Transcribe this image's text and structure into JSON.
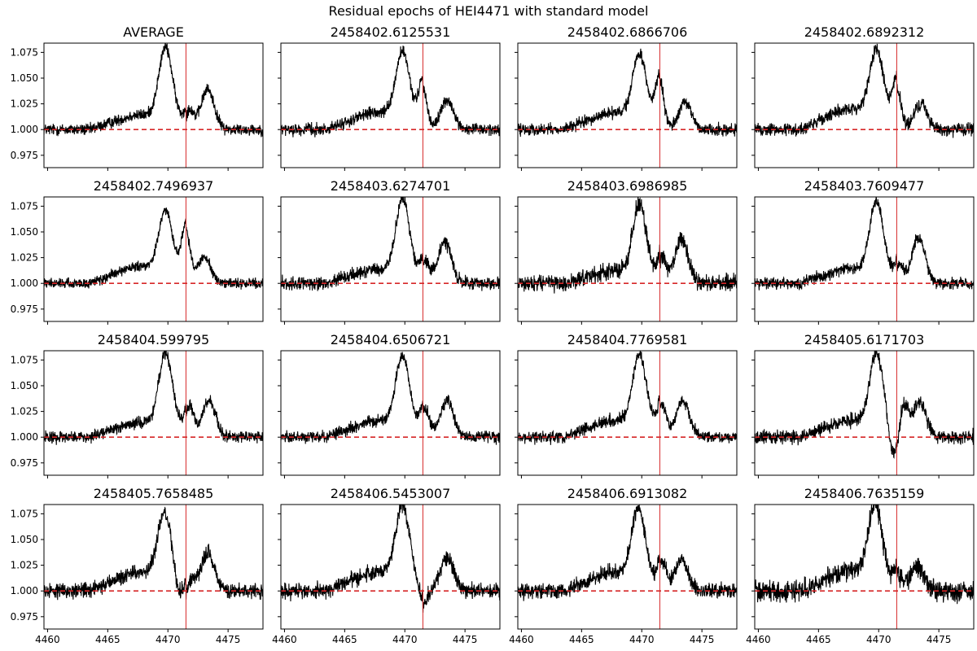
{
  "figure": {
    "title": "Residual epochs of HEI4471 with standard model"
  },
  "chart_data": {
    "type": "line",
    "layout": "4x4 grid of panels sharing x and y axes",
    "xlim": [
      4459.7,
      4477.9
    ],
    "ylim": [
      0.963,
      1.084
    ],
    "xticks": [
      4460,
      4465,
      4470,
      4475
    ],
    "yticks": [
      0.975,
      1.0,
      1.025,
      1.05,
      1.075
    ],
    "xtick_labels": [
      "4460",
      "4465",
      "4470",
      "4475"
    ],
    "ytick_labels": [
      "0.975",
      "1.000",
      "1.025",
      "1.050",
      "1.075"
    ],
    "reference_line": {
      "y": 1.0,
      "style": "dashed",
      "color": "#d62728"
    },
    "marker_line": {
      "x": 4471.5,
      "style": "solid",
      "color": "#d62728"
    },
    "series_color": "#000000",
    "panels": [
      {
        "title": "AVERAGE",
        "noise": 0.0035,
        "shoulder": 0.014,
        "p1": {
          "x": 4469.8,
          "a": 0.066
        },
        "p2": {
          "x": 4473.3,
          "a": 0.039
        },
        "mid": {
          "x": 4471.8,
          "a": 0.019
        },
        "dip": {
          "x": 4471.5,
          "a": 0.0
        }
      },
      {
        "title": "2458402.6125531",
        "noise": 0.0035,
        "shoulder": 0.016,
        "p1": {
          "x": 4469.8,
          "a": 0.06
        },
        "p2": {
          "x": 4473.5,
          "a": 0.028
        },
        "mid": {
          "x": 4471.5,
          "a": 0.04
        },
        "dip": {
          "x": 4471.5,
          "a": 0.0
        }
      },
      {
        "title": "2458402.6866706",
        "noise": 0.0035,
        "shoulder": 0.016,
        "p1": {
          "x": 4469.8,
          "a": 0.058
        },
        "p2": {
          "x": 4473.6,
          "a": 0.026
        },
        "mid": {
          "x": 4471.5,
          "a": 0.045
        },
        "dip": {
          "x": 4471.5,
          "a": 0.0
        }
      },
      {
        "title": "2458402.6892312",
        "noise": 0.004,
        "shoulder": 0.02,
        "p1": {
          "x": 4469.8,
          "a": 0.058
        },
        "p2": {
          "x": 4473.5,
          "a": 0.025
        },
        "mid": {
          "x": 4471.5,
          "a": 0.04
        },
        "dip": {
          "x": 4471.5,
          "a": 0.0
        }
      },
      {
        "title": "2458402.7496937",
        "noise": 0.003,
        "shoulder": 0.016,
        "p1": {
          "x": 4469.8,
          "a": 0.055
        },
        "p2": {
          "x": 4473.0,
          "a": 0.025
        },
        "mid": {
          "x": 4471.5,
          "a": 0.05
        },
        "dip": {
          "x": 4471.5,
          "a": 0.0
        }
      },
      {
        "title": "2458403.6274701",
        "noise": 0.004,
        "shoulder": 0.014,
        "p1": {
          "x": 4469.8,
          "a": 0.068
        },
        "p2": {
          "x": 4473.3,
          "a": 0.04
        },
        "mid": {
          "x": 4471.7,
          "a": 0.022
        },
        "dip": {
          "x": 4471.5,
          "a": 0.0
        }
      },
      {
        "title": "2458403.6986985",
        "noise": 0.005,
        "shoulder": 0.012,
        "p1": {
          "x": 4469.8,
          "a": 0.066
        },
        "p2": {
          "x": 4473.3,
          "a": 0.042
        },
        "mid": {
          "x": 4471.7,
          "a": 0.025
        },
        "dip": {
          "x": 4471.5,
          "a": 0.0
        }
      },
      {
        "title": "2458403.7609477",
        "noise": 0.0035,
        "shoulder": 0.014,
        "p1": {
          "x": 4469.8,
          "a": 0.066
        },
        "p2": {
          "x": 4473.3,
          "a": 0.045
        },
        "mid": {
          "x": 4471.7,
          "a": 0.018
        },
        "dip": {
          "x": 4471.5,
          "a": 0.0
        }
      },
      {
        "title": "2458404.599795",
        "noise": 0.0035,
        "shoulder": 0.014,
        "p1": {
          "x": 4469.8,
          "a": 0.068
        },
        "p2": {
          "x": 4473.4,
          "a": 0.036
        },
        "mid": {
          "x": 4471.8,
          "a": 0.03
        },
        "dip": {
          "x": 4471.5,
          "a": 0.0
        }
      },
      {
        "title": "2458404.6506721",
        "noise": 0.0035,
        "shoulder": 0.016,
        "p1": {
          "x": 4469.8,
          "a": 0.064
        },
        "p2": {
          "x": 4473.5,
          "a": 0.035
        },
        "mid": {
          "x": 4471.7,
          "a": 0.028
        },
        "dip": {
          "x": 4471.5,
          "a": 0.0
        }
      },
      {
        "title": "2458404.7769581",
        "noise": 0.0035,
        "shoulder": 0.016,
        "p1": {
          "x": 4469.8,
          "a": 0.064
        },
        "p2": {
          "x": 4473.4,
          "a": 0.036
        },
        "mid": {
          "x": 4471.7,
          "a": 0.033
        },
        "dip": {
          "x": 4471.5,
          "a": 0.0
        }
      },
      {
        "title": "2458405.6171703",
        "noise": 0.004,
        "shoulder": 0.016,
        "p1": {
          "x": 4469.8,
          "a": 0.066
        },
        "p2": {
          "x": 4473.4,
          "a": 0.034
        },
        "mid": {
          "x": 4472.1,
          "a": 0.032
        },
        "dip": {
          "x": 4471.2,
          "a": 0.03
        }
      },
      {
        "title": "2458405.7658485",
        "noise": 0.0045,
        "shoulder": 0.018,
        "p1": {
          "x": 4469.7,
          "a": 0.06
        },
        "p2": {
          "x": 4473.3,
          "a": 0.037
        },
        "mid": {
          "x": 4472.0,
          "a": 0.01
        },
        "dip": {
          "x": 4470.9,
          "a": 0.018
        }
      },
      {
        "title": "2458406.5453007",
        "noise": 0.0045,
        "shoulder": 0.018,
        "p1": {
          "x": 4469.8,
          "a": 0.066
        },
        "p2": {
          "x": 4473.5,
          "a": 0.032
        },
        "mid": {
          "x": 4472.0,
          "a": 0.0
        },
        "dip": {
          "x": 4471.4,
          "a": 0.016
        }
      },
      {
        "title": "2458406.6913082",
        "noise": 0.0045,
        "shoulder": 0.018,
        "p1": {
          "x": 4469.7,
          "a": 0.062
        },
        "p2": {
          "x": 4473.3,
          "a": 0.03
        },
        "mid": {
          "x": 4471.7,
          "a": 0.028
        },
        "dip": {
          "x": 4470.9,
          "a": 0.002
        }
      },
      {
        "title": "2458406.7635159",
        "noise": 0.006,
        "shoulder": 0.02,
        "p1": {
          "x": 4469.7,
          "a": 0.066
        },
        "p2": {
          "x": 4473.2,
          "a": 0.025
        },
        "mid": {
          "x": 4471.6,
          "a": 0.016
        },
        "dip": {
          "x": 4470.9,
          "a": 0.004
        }
      }
    ]
  }
}
